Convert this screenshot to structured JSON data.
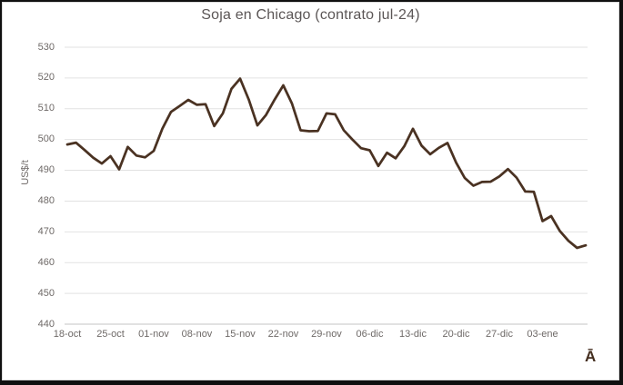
{
  "window": {
    "background": "#ffffff",
    "border_color": "#101010"
  },
  "chart_data": {
    "type": "line",
    "title": "Soja en Chicago (contrato jul-24)",
    "xlabel": "",
    "ylabel": "US$/t",
    "ylim": [
      440,
      530
    ],
    "yticks": [
      440,
      450,
      460,
      470,
      480,
      490,
      500,
      510,
      520,
      530
    ],
    "x_tick_labels": [
      "18-oct",
      "25-oct",
      "01-nov",
      "08-nov",
      "15-nov",
      "22-nov",
      "29-nov",
      "06-dic",
      "13-dic",
      "20-dic",
      "27-dic",
      "03-ene"
    ],
    "x_tick_every": 5,
    "grid": true,
    "legend_position": "none",
    "series": [
      {
        "name": "Soja en Chicago (contrato jul-24)",
        "color": "#4a3222",
        "values": [
          498.4,
          499.0,
          496.6,
          494.1,
          492.2,
          494.6,
          490.3,
          497.6,
          494.8,
          494.2,
          496.3,
          503.5,
          509.0,
          510.9,
          512.9,
          511.3,
          511.5,
          504.4,
          508.5,
          516.5,
          519.8,
          513.0,
          504.6,
          508.0,
          513.0,
          517.6,
          511.7,
          503.0,
          502.7,
          502.8,
          508.5,
          508.2,
          503.0,
          500.0,
          497.2,
          496.5,
          491.4,
          495.7,
          493.9,
          497.8,
          503.5,
          498.0,
          495.2,
          497.3,
          498.9,
          492.5,
          487.5,
          485.0,
          486.2,
          486.3,
          488.0,
          490.4,
          487.6,
          483.1,
          483.0,
          473.5,
          475.1,
          470.3,
          467.1,
          464.8,
          465.6
        ]
      }
    ],
    "artifact_glyph": "Ā"
  },
  "colors": {
    "line": "#4a3222",
    "gridline": "#e2e2e2",
    "axis_line": "#c4c4c4",
    "tick_text": "#6e6967",
    "title_text": "#5b5656",
    "chart_border": "#d9d9d9"
  }
}
